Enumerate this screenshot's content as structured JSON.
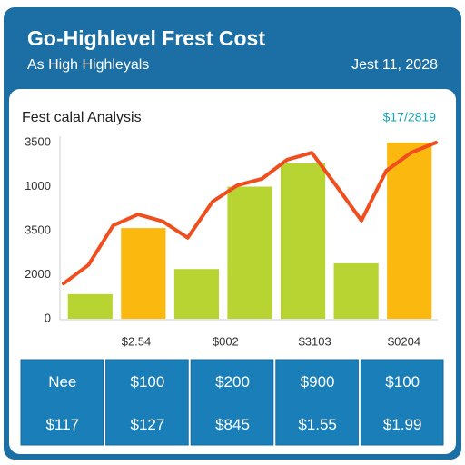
{
  "header": {
    "title": "Go-Highlevel Frest Cost",
    "subtitle": "As High Highleyals",
    "date": "Jest 11, 2028"
  },
  "chart_data": {
    "type": "bar",
    "title": "Fest calal Analysis",
    "subtitle": "$17/2819",
    "y_axis_labels": [
      "3500",
      "1000",
      "3500",
      "2000",
      "0"
    ],
    "x_axis_labels": [
      "$2.54",
      "$002",
      "$3103",
      "$0204"
    ],
    "ylim": [
      0,
      4
    ],
    "series": [
      {
        "type": "bar",
        "colors": [
          "#b8d433",
          "#fbb80f",
          "#b8d433",
          "#b8d433",
          "#b8d433",
          "#b8d433",
          "#fbb80f"
        ],
        "values": [
          0.56,
          2.06,
          1.13,
          3.0,
          3.53,
          1.26,
          4.0
        ]
      },
      {
        "type": "line",
        "color": "#f04e1e",
        "values": [
          0.8,
          1.22,
          2.12,
          2.37,
          2.21,
          1.84,
          2.66,
          3.03,
          3.18,
          3.61,
          3.77,
          3.01,
          2.23,
          3.36,
          3.77,
          4.0
        ]
      }
    ]
  },
  "table": {
    "rows": [
      [
        "Nee",
        "$100",
        "$200",
        "$900",
        "$100"
      ],
      [
        "$117",
        "$127",
        "$845",
        "$1.55",
        "$1.99"
      ]
    ]
  }
}
